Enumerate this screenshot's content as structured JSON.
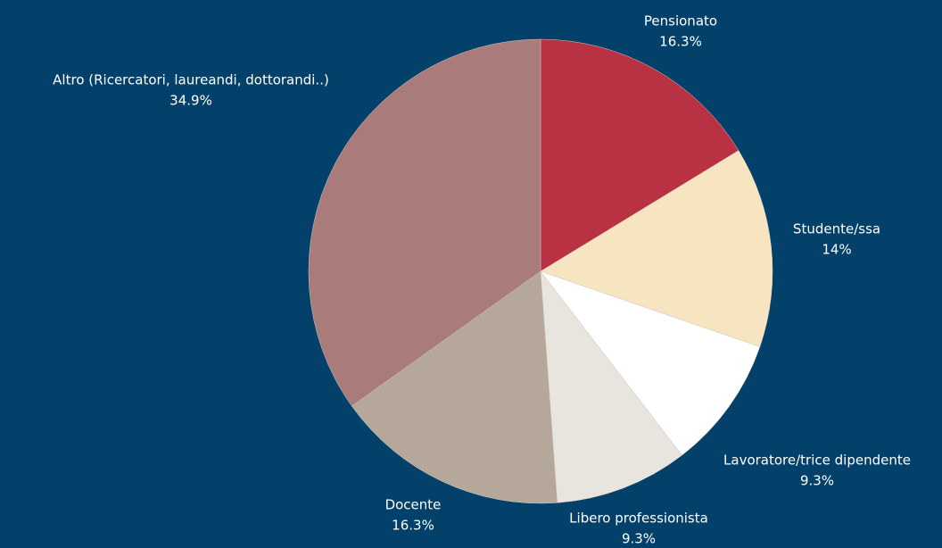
{
  "chart_data": {
    "type": "pie",
    "categories": [
      "Pensionato",
      "Studente/ssa",
      "Lavoratore/trice dipendente",
      "Libero professionista",
      "Docente",
      "Altro (Ricercatori, laureandi, dottorandi..)"
    ],
    "values": [
      16.3,
      14,
      9.3,
      9.3,
      16.3,
      34.9
    ],
    "value_labels": [
      "16.3%",
      "14%",
      "9.3%",
      "9.3%",
      "16.3%",
      "34.9%"
    ],
    "colors": [
      "#b83244",
      "#f7e5c1",
      "#ffffff",
      "#e8e5df",
      "#b5a79a",
      "#aa7b7b"
    ]
  }
}
